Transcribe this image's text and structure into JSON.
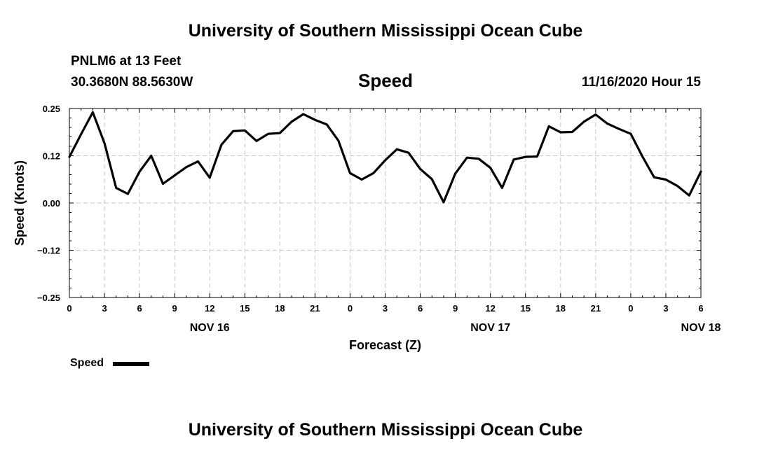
{
  "header": {
    "title": "University of Southern Mississippi Ocean Cube",
    "station": "PNLM6 at 13 Feet",
    "coordinates": "30.3680N 88.5630W",
    "datetime": "11/16/2020 Hour 15"
  },
  "footer": {
    "title": "University of Southern Mississippi Ocean Cube"
  },
  "chart_data": {
    "type": "line",
    "title": "Speed",
    "xlabel": "Forecast (Z)",
    "ylabel": "Speed (Knots)",
    "ylim": [
      -0.25,
      0.25
    ],
    "xlim": [
      0,
      54
    ],
    "grid": true,
    "y_ticks": [
      {
        "value": -0.25,
        "label": "−0.25"
      },
      {
        "value": -0.125,
        "label": "−0.12"
      },
      {
        "value": 0,
        "label": "0.00"
      },
      {
        "value": 0.125,
        "label": "0.12"
      },
      {
        "value": 0.25,
        "label": "0.25"
      }
    ],
    "x_ticks": [
      {
        "value": 0,
        "label": "0"
      },
      {
        "value": 3,
        "label": "3"
      },
      {
        "value": 6,
        "label": "6"
      },
      {
        "value": 9,
        "label": "9"
      },
      {
        "value": 12,
        "label": "12"
      },
      {
        "value": 15,
        "label": "15"
      },
      {
        "value": 18,
        "label": "18"
      },
      {
        "value": 21,
        "label": "21"
      },
      {
        "value": 24,
        "label": "0"
      },
      {
        "value": 27,
        "label": "3"
      },
      {
        "value": 30,
        "label": "6"
      },
      {
        "value": 33,
        "label": "9"
      },
      {
        "value": 36,
        "label": "12"
      },
      {
        "value": 39,
        "label": "15"
      },
      {
        "value": 42,
        "label": "18"
      },
      {
        "value": 45,
        "label": "21"
      },
      {
        "value": 48,
        "label": "0"
      },
      {
        "value": 51,
        "label": "3"
      },
      {
        "value": 54,
        "label": "6"
      }
    ],
    "date_labels": [
      {
        "value": 12,
        "label": "NOV 16"
      },
      {
        "value": 36,
        "label": "NOV 17"
      },
      {
        "value": 54,
        "label": "NOV 18"
      }
    ],
    "series": [
      {
        "name": "Speed",
        "x": [
          0,
          1,
          2,
          3,
          4,
          5,
          6,
          7,
          8,
          9,
          10,
          11,
          12,
          13,
          14,
          15,
          16,
          17,
          18,
          19,
          20,
          21,
          22,
          23,
          24,
          25,
          26,
          27,
          28,
          29,
          30,
          31,
          32,
          33,
          34,
          35,
          36,
          37,
          38,
          39,
          40,
          41,
          42,
          43,
          44,
          45,
          46,
          47,
          48,
          49,
          50,
          51,
          52,
          53,
          54
        ],
        "values": [
          0.122,
          0.182,
          0.24,
          0.158,
          0.04,
          0.024,
          0.083,
          0.125,
          0.051,
          0.073,
          0.095,
          0.11,
          0.067,
          0.154,
          0.19,
          0.192,
          0.164,
          0.183,
          0.185,
          0.215,
          0.235,
          0.22,
          0.208,
          0.165,
          0.079,
          0.062,
          0.079,
          0.113,
          0.142,
          0.133,
          0.09,
          0.063,
          0.002,
          0.078,
          0.12,
          0.117,
          0.093,
          0.04,
          0.115,
          0.122,
          0.123,
          0.203,
          0.187,
          0.188,
          0.215,
          0.234,
          0.21,
          0.196,
          0.183,
          0.123,
          0.068,
          0.062,
          0.045,
          0.02,
          0.083
        ]
      }
    ],
    "legend": {
      "label": "Speed",
      "position": "bottom-left"
    }
  }
}
